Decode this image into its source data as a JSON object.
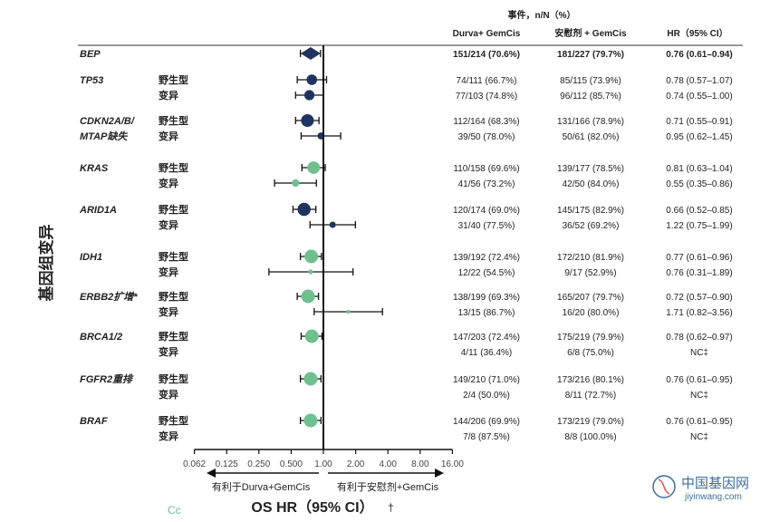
{
  "colors": {
    "navy": "#1f3360",
    "green": "#6fc08f",
    "axis": "#111111",
    "watermark": "#3d6f9a"
  },
  "header": {
    "top": "事件，n/N（%）",
    "col_durva": "Durva+ GemCis",
    "col_pbo": "安慰剂 + GemCis",
    "col_hr": "HR（95% CI）"
  },
  "y_axis_label": "基因组变异",
  "x_axis_title": "OS HR（95% CI）",
  "x_title_mark": "†",
  "direction_left": "有利于Durva+GemCis",
  "direction_right": "有利于安慰剂+GemCis",
  "corner_text": "Cc",
  "watermark": {
    "name": "中国基因网",
    "url": "jiyinwang.com"
  },
  "chart_data": {
    "type": "forest",
    "x_scale": "log2",
    "xlim": [
      0.062,
      16
    ],
    "x_ticks": [
      "0.062",
      "0.125",
      "0.250",
      "0.500",
      "1.00",
      "2.00",
      "4.00",
      "8.00",
      "16.00"
    ],
    "x_tick_values": [
      0.0625,
      0.125,
      0.25,
      0.5,
      1,
      2,
      4,
      8,
      16
    ],
    "reference_line": 1,
    "groups": [
      {
        "label": "BEP",
        "label_lines": [
          "BEP"
        ],
        "rows": [
          {
            "sub": "",
            "durva": "151/214 (70.6%)",
            "pbo": "181/227 (79.7%)",
            "hr_text": "0.76 (0.61–0.94)",
            "hr": 0.76,
            "lo": 0.61,
            "hi": 0.94,
            "color": "navy",
            "marker": "diamond"
          }
        ]
      },
      {
        "label": "TP53",
        "label_lines": [
          "TP53"
        ],
        "rows": [
          {
            "sub": "野生型",
            "durva": "74/111 (66.7%)",
            "pbo": "85/115 (73.9%)",
            "hr_text": "0.78 (0.57–1.07)",
            "hr": 0.78,
            "lo": 0.57,
            "hi": 1.07,
            "color": "navy",
            "marker": "circle"
          },
          {
            "sub": "变异",
            "durva": "77/103 (74.8%)",
            "pbo": "96/112 (85.7%)",
            "hr_text": "0.74 (0.55–1.00)",
            "hr": 0.74,
            "lo": 0.55,
            "hi": 1.0,
            "color": "navy",
            "marker": "circle"
          }
        ]
      },
      {
        "label": "CDKN2A/B/MTAP缺失",
        "label_lines": [
          "CDKN2A/B/",
          "MTAP缺失"
        ],
        "rows": [
          {
            "sub": "野生型",
            "durva": "112/164 (68.3%)",
            "pbo": "131/166 (78.9%)",
            "hr_text": "0.71 (0.55–0.91)",
            "hr": 0.71,
            "lo": 0.55,
            "hi": 0.91,
            "color": "navy",
            "marker": "circle"
          },
          {
            "sub": "变异",
            "durva": "39/50 (78.0%)",
            "pbo": "50/61 (82.0%)",
            "hr_text": "0.95 (0.62–1.45)",
            "hr": 0.95,
            "lo": 0.62,
            "hi": 1.45,
            "color": "navy",
            "marker": "circle"
          }
        ]
      },
      {
        "label": "KRAS",
        "label_lines": [
          "KRAS"
        ],
        "rows": [
          {
            "sub": "野生型",
            "durva": "110/158 (69.6%)",
            "pbo": "139/177 (78.5%)",
            "hr_text": "0.81 (0.63–1.04)",
            "hr": 0.81,
            "lo": 0.63,
            "hi": 1.04,
            "color": "green",
            "marker": "circle"
          },
          {
            "sub": "变异",
            "durva": "41/56 (73.2%)",
            "pbo": "42/50 (84.0%)",
            "hr_text": "0.55 (0.35–0.86)",
            "hr": 0.55,
            "lo": 0.35,
            "hi": 0.86,
            "color": "green",
            "marker": "circle"
          }
        ]
      },
      {
        "label": "ARID1A",
        "label_lines": [
          "ARID1A"
        ],
        "rows": [
          {
            "sub": "野生型",
            "durva": "120/174 (69.0%)",
            "pbo": "145/175 (82.9%)",
            "hr_text": "0.66 (0.52–0.85)",
            "hr": 0.66,
            "lo": 0.52,
            "hi": 0.85,
            "color": "navy",
            "marker": "circle"
          },
          {
            "sub": "变异",
            "durva": "31/40 (77.5%)",
            "pbo": "36/52 (69.2%)",
            "hr_text": "1.22 (0.75–1.99)",
            "hr": 1.22,
            "lo": 0.75,
            "hi": 1.99,
            "color": "navy",
            "marker": "circle"
          }
        ]
      },
      {
        "label": "IDH1",
        "label_lines": [
          "IDH1"
        ],
        "rows": [
          {
            "sub": "野生型",
            "durva": "139/192 (72.4%)",
            "pbo": "172/210 (81.9%)",
            "hr_text": "0.77 (0.61–0.96)",
            "hr": 0.77,
            "lo": 0.61,
            "hi": 0.96,
            "color": "green",
            "marker": "circle"
          },
          {
            "sub": "变异",
            "durva": "12/22 (54.5%)",
            "pbo": "9/17 (52.9%)",
            "hr_text": "0.76 (0.31–1.89)",
            "hr": 0.76,
            "lo": 0.31,
            "hi": 1.89,
            "color": "green",
            "marker": "circle"
          }
        ]
      },
      {
        "label": "ERBB2扩增*",
        "label_lines": [
          "ERBB2扩增*"
        ],
        "rows": [
          {
            "sub": "野生型",
            "durva": "138/199 (69.3%)",
            "pbo": "165/207 (79.7%)",
            "hr_text": "0.72 (0.57–0.90)",
            "hr": 0.72,
            "lo": 0.57,
            "hi": 0.9,
            "color": "green",
            "marker": "circle"
          },
          {
            "sub": "变异",
            "durva": "13/15 (86.7%)",
            "pbo": "16/20 (80.0%)",
            "hr_text": "1.71 (0.82–3.56)",
            "hr": 1.71,
            "lo": 0.82,
            "hi": 3.56,
            "color": "green",
            "marker": "circle"
          }
        ]
      },
      {
        "label": "BRCA1/2",
        "label_lines": [
          "BRCA1/2"
        ],
        "rows": [
          {
            "sub": "野生型",
            "durva": "147/203 (72.4%)",
            "pbo": "175/219 (79.9%)",
            "hr_text": "0.78 (0.62–0.97)",
            "hr": 0.78,
            "lo": 0.62,
            "hi": 0.97,
            "color": "green",
            "marker": "circle"
          },
          {
            "sub": "变异",
            "durva": "4/11 (36.4%)",
            "pbo": "6/8 (75.0%)",
            "hr_text": "NC‡",
            "color": "green",
            "marker": "circle"
          }
        ]
      },
      {
        "label": "FGFR2重排",
        "label_lines": [
          "FGFR2重排"
        ],
        "rows": [
          {
            "sub": "野生型",
            "durva": "149/210 (71.0%)",
            "pbo": "173/216 (80.1%)",
            "hr_text": "0.76 (0.61–0.95)",
            "hr": 0.76,
            "lo": 0.61,
            "hi": 0.95,
            "color": "green",
            "marker": "circle"
          },
          {
            "sub": "变异",
            "durva": "2/4 (50.0%)",
            "pbo": "8/11 (72.7%)",
            "hr_text": "NC‡",
            "color": "green",
            "marker": "circle"
          }
        ]
      },
      {
        "label": "BRAF",
        "label_lines": [
          "BRAF"
        ],
        "rows": [
          {
            "sub": "野生型",
            "durva": "144/206 (69.9%)",
            "pbo": "173/219 (79.0%)",
            "hr_text": "0.76 (0.61–0.95)",
            "hr": 0.76,
            "lo": 0.61,
            "hi": 0.95,
            "color": "green",
            "marker": "circle"
          },
          {
            "sub": "变异",
            "durva": "7/8 (87.5%)",
            "pbo": "8/8 (100.0%)",
            "hr_text": "NC‡",
            "color": "green",
            "marker": "circle"
          }
        ]
      }
    ]
  }
}
